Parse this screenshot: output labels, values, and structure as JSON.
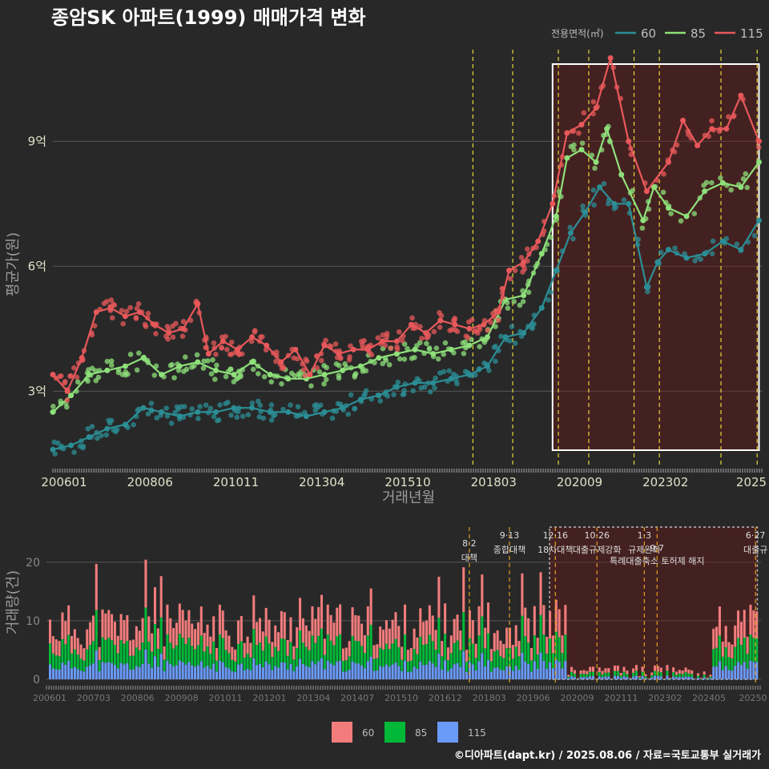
{
  "title": "종암SK 아파트(1999) 매매가격 변화",
  "footer": "©디아파트(dapt.kr) / 2025.08.06 / 자료=국토교통부 실거래가",
  "colors": {
    "s60": "#2b8e96",
    "s85": "#8ee07a",
    "s115": "#e8585a",
    "bar60": "#f27c7c",
    "bar85": "#00b838",
    "bar115": "#6a9af8"
  },
  "chart_data": [
    {
      "type": "line",
      "xlabel": "거래년월",
      "ylabel": "평균가(원)",
      "legend_title": "전용면적(㎡)",
      "legend_placement": "top-right",
      "x_ticks": [
        "200601",
        "200806",
        "201011",
        "201304",
        "201510",
        "201803",
        "202009",
        "202302",
        "2025"
      ],
      "y_ticks": [
        {
          "value": 3,
          "label": "3억"
        },
        {
          "value": 6,
          "label": "6억"
        },
        {
          "value": 9,
          "label": "9억"
        }
      ],
      "ylim": [
        1.2,
        11.2
      ],
      "xlim": [
        2006.0,
        2025.6
      ],
      "highlight_range": [
        2019.8,
        2025.5
      ],
      "vlines": [
        2017.6,
        2018.7,
        2019.96,
        2020.8,
        2022.05,
        2022.75,
        2024.45,
        2025.45
      ],
      "series": [
        {
          "name": "60",
          "points": [
            [
              2006.0,
              1.6
            ],
            [
              2006.5,
              1.7
            ],
            [
              2007.0,
              1.9
            ],
            [
              2007.5,
              2.1
            ],
            [
              2008.0,
              2.2
            ],
            [
              2008.5,
              2.6
            ],
            [
              2009.0,
              2.5
            ],
            [
              2009.5,
              2.4
            ],
            [
              2010.0,
              2.5
            ],
            [
              2010.5,
              2.5
            ],
            [
              2011.0,
              2.6
            ],
            [
              2011.5,
              2.6
            ],
            [
              2012.0,
              2.5
            ],
            [
              2012.5,
              2.5
            ],
            [
              2013.0,
              2.4
            ],
            [
              2013.5,
              2.5
            ],
            [
              2014.0,
              2.6
            ],
            [
              2014.5,
              2.8
            ],
            [
              2015.0,
              2.9
            ],
            [
              2015.5,
              3.1
            ],
            [
              2016.0,
              3.2
            ],
            [
              2016.5,
              3.2
            ],
            [
              2017.0,
              3.3
            ],
            [
              2017.5,
              3.4
            ],
            [
              2018.0,
              3.6
            ],
            [
              2018.5,
              4.3
            ],
            [
              2019.0,
              4.4
            ],
            [
              2019.5,
              5.0
            ],
            [
              2019.9,
              5.9
            ],
            [
              2020.3,
              6.8
            ],
            [
              2020.7,
              7.3
            ],
            [
              2021.1,
              7.9
            ],
            [
              2021.5,
              7.5
            ],
            [
              2021.9,
              7.5
            ],
            [
              2022.4,
              5.5
            ],
            [
              2022.7,
              6.1
            ],
            [
              2023.0,
              6.4
            ],
            [
              2023.5,
              6.2
            ],
            [
              2024.0,
              6.3
            ],
            [
              2024.5,
              6.6
            ],
            [
              2025.0,
              6.4
            ],
            [
              2025.5,
              7.1
            ]
          ]
        },
        {
          "name": "85",
          "points": [
            [
              2006.0,
              2.5
            ],
            [
              2006.5,
              2.9
            ],
            [
              2007.0,
              3.4
            ],
            [
              2007.5,
              3.5
            ],
            [
              2008.0,
              3.6
            ],
            [
              2008.5,
              3.8
            ],
            [
              2009.0,
              3.4
            ],
            [
              2009.5,
              3.6
            ],
            [
              2010.0,
              3.7
            ],
            [
              2010.5,
              3.5
            ],
            [
              2011.0,
              3.4
            ],
            [
              2011.5,
              3.7
            ],
            [
              2012.0,
              3.4
            ],
            [
              2012.5,
              3.3
            ],
            [
              2013.0,
              3.3
            ],
            [
              2013.5,
              3.4
            ],
            [
              2014.0,
              3.5
            ],
            [
              2014.5,
              3.6
            ],
            [
              2015.0,
              3.8
            ],
            [
              2015.5,
              3.9
            ],
            [
              2016.0,
              4.0
            ],
            [
              2016.5,
              3.9
            ],
            [
              2017.0,
              4.0
            ],
            [
              2017.5,
              4.1
            ],
            [
              2018.0,
              4.3
            ],
            [
              2018.5,
              5.2
            ],
            [
              2019.0,
              5.3
            ],
            [
              2019.5,
              6.3
            ],
            [
              2019.9,
              7.2
            ],
            [
              2020.2,
              8.6
            ],
            [
              2020.6,
              8.8
            ],
            [
              2021.0,
              8.5
            ],
            [
              2021.3,
              9.3
            ],
            [
              2021.7,
              8.2
            ],
            [
              2022.3,
              7.1
            ],
            [
              2022.6,
              7.9
            ],
            [
              2023.0,
              7.4
            ],
            [
              2023.5,
              7.2
            ],
            [
              2024.0,
              7.8
            ],
            [
              2024.5,
              8.0
            ],
            [
              2025.0,
              7.9
            ],
            [
              2025.5,
              8.5
            ]
          ]
        },
        {
          "name": "115",
          "points": [
            [
              2006.0,
              3.4
            ],
            [
              2006.4,
              3.0
            ],
            [
              2006.8,
              3.8
            ],
            [
              2007.2,
              4.9
            ],
            [
              2007.6,
              5.0
            ],
            [
              2008.0,
              4.8
            ],
            [
              2008.4,
              4.9
            ],
            [
              2008.8,
              4.6
            ],
            [
              2009.2,
              4.4
            ],
            [
              2009.6,
              4.5
            ],
            [
              2010.0,
              5.1
            ],
            [
              2010.3,
              3.9
            ],
            [
              2010.7,
              4.2
            ],
            [
              2011.1,
              4.0
            ],
            [
              2011.5,
              4.3
            ],
            [
              2011.9,
              4.1
            ],
            [
              2012.3,
              3.7
            ],
            [
              2012.7,
              4.0
            ],
            [
              2013.1,
              3.4
            ],
            [
              2013.5,
              4.1
            ],
            [
              2013.9,
              3.9
            ],
            [
              2014.3,
              4.0
            ],
            [
              2014.7,
              4.0
            ],
            [
              2015.1,
              4.2
            ],
            [
              2015.5,
              4.2
            ],
            [
              2015.9,
              4.6
            ],
            [
              2016.3,
              4.4
            ],
            [
              2016.7,
              4.7
            ],
            [
              2017.1,
              4.6
            ],
            [
              2017.5,
              4.5
            ],
            [
              2017.9,
              4.6
            ],
            [
              2018.3,
              4.9
            ],
            [
              2018.6,
              5.9
            ],
            [
              2019.0,
              6.1
            ],
            [
              2019.4,
              6.6
            ],
            [
              2019.8,
              7.5
            ],
            [
              2020.2,
              9.2
            ],
            [
              2020.6,
              9.4
            ],
            [
              2021.0,
              9.8
            ],
            [
              2021.4,
              11.0
            ],
            [
              2021.9,
              9.0
            ],
            [
              2022.4,
              7.8
            ],
            [
              2023.0,
              8.5
            ],
            [
              2023.4,
              9.5
            ],
            [
              2023.8,
              8.9
            ],
            [
              2024.2,
              9.3
            ],
            [
              2024.6,
              9.3
            ],
            [
              2025.0,
              10.1
            ],
            [
              2025.5,
              9.0
            ]
          ]
        }
      ]
    },
    {
      "type": "bar",
      "stacked": true,
      "ylabel": "거래량(건)",
      "ylim": [
        0,
        26
      ],
      "x_ticks": [
        "200601",
        "200703",
        "200806",
        "200908",
        "201011",
        "201201",
        "201304",
        "201407",
        "201510",
        "201612",
        "201803",
        "201906",
        "202009",
        "202111",
        "202302",
        "202405",
        "20250"
      ],
      "y_ticks": [
        0,
        10,
        20
      ],
      "highlight_range": [
        2019.8,
        2025.5
      ],
      "policies": [
        {
          "x": 2017.6,
          "date": "8·2",
          "label": "대책"
        },
        {
          "x": 2018.7,
          "date": "9·13",
          "label": "종합대책"
        },
        {
          "x": 2019.96,
          "date": "12·16",
          "label": "18차대책"
        },
        {
          "x": 2021.1,
          "date": "10·26",
          "label": "대출규제강화"
        },
        {
          "x": 2022.4,
          "date": "1·3",
          "label": "규제완화"
        },
        {
          "x": 2022.75,
          "date": "9·7",
          "label": "특례대출축소 토허제 해지"
        },
        {
          "x": 2025.45,
          "date": "6·27",
          "label": "대출규"
        }
      ],
      "legend": [
        "60",
        "85",
        "115"
      ]
    }
  ]
}
